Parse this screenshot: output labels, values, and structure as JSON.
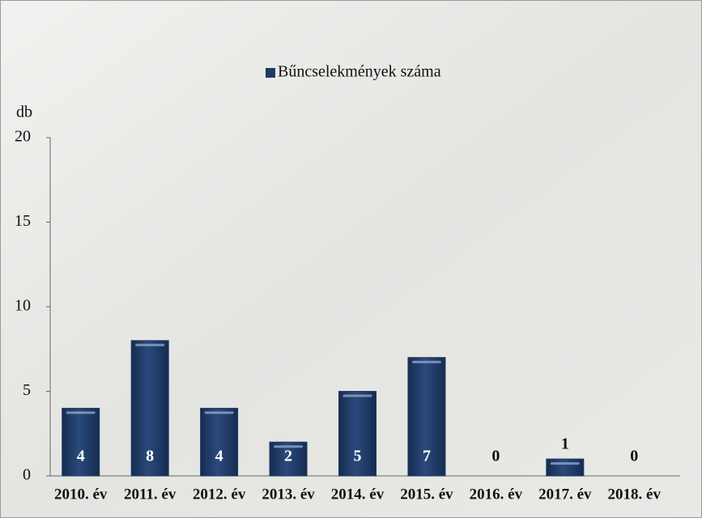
{
  "chart_data": {
    "type": "bar",
    "legend": "Bűncselekmények száma",
    "y_label": "db",
    "categories": [
      "2010. év",
      "2011. év",
      "2012. év",
      "2013. év",
      "2014. év",
      "2015. év",
      "2016. év",
      "2017. év",
      "2018. év"
    ],
    "values": [
      4,
      8,
      4,
      2,
      5,
      7,
      0,
      1,
      0
    ],
    "color": "#1e3a64",
    "ylim": [
      0,
      20
    ],
    "yticks": [
      0,
      5,
      10,
      15,
      20
    ],
    "grid": false
  }
}
